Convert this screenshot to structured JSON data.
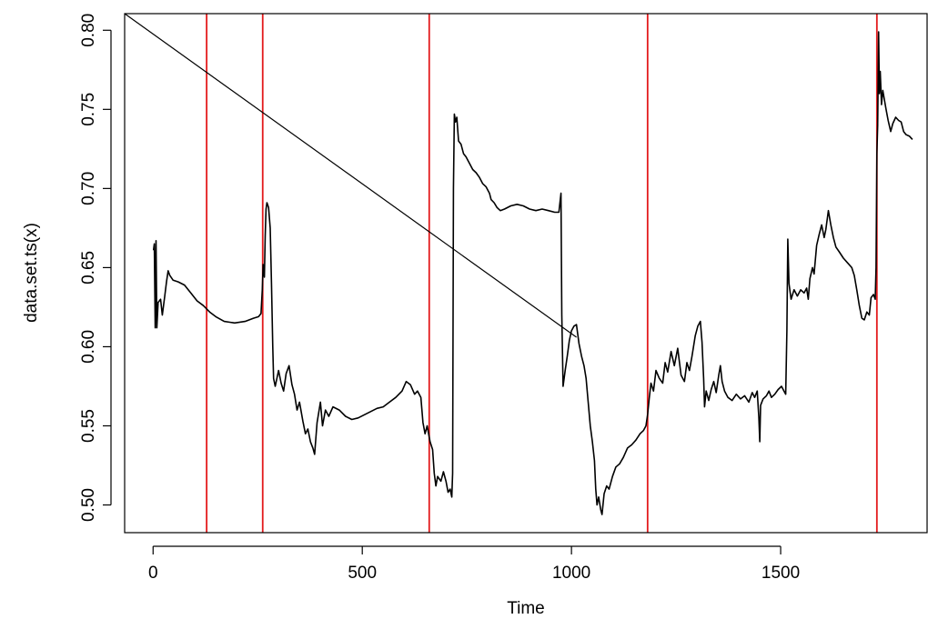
{
  "chart_data": {
    "type": "line",
    "xlabel": "Time",
    "ylabel": "data.set.ts(x)",
    "xlim": [
      -68,
      1850
    ],
    "ylim": [
      0.4825,
      0.8105
    ],
    "x_ticks": [
      0,
      500,
      1000,
      1500
    ],
    "x_tick_labels": [
      "0",
      "500",
      "1000",
      "1500"
    ],
    "y_ticks": [
      0.5,
      0.55,
      0.6,
      0.65,
      0.7,
      0.75,
      0.8
    ],
    "y_tick_labels": [
      "0.50",
      "0.55",
      "0.60",
      "0.65",
      "0.70",
      "0.75",
      "0.80"
    ],
    "grid": false,
    "colors": {
      "series": "#000000",
      "breakpoints": "#e31a1c",
      "axis": "#000000"
    },
    "vertical_lines": [
      128,
      262,
      660,
      1182,
      1730
    ],
    "series": [
      {
        "values": [
          [
            1,
            0.661
          ],
          [
            3,
            0.665
          ],
          [
            5,
            0.612
          ],
          [
            7,
            0.667
          ],
          [
            9,
            0.612
          ],
          [
            12,
            0.628
          ],
          [
            18,
            0.63
          ],
          [
            22,
            0.62
          ],
          [
            28,
            0.632
          ],
          [
            32,
            0.641
          ],
          [
            36,
            0.648
          ],
          [
            40,
            0.645
          ],
          [
            48,
            0.642
          ],
          [
            60,
            0.641
          ],
          [
            75,
            0.639
          ],
          [
            90,
            0.634
          ],
          [
            105,
            0.629
          ],
          [
            120,
            0.626
          ],
          [
            135,
            0.622
          ],
          [
            150,
            0.619
          ],
          [
            170,
            0.616
          ],
          [
            195,
            0.615
          ],
          [
            220,
            0.616
          ],
          [
            240,
            0.618
          ],
          [
            252,
            0.619
          ],
          [
            258,
            0.621
          ],
          [
            261,
            0.636
          ],
          [
            263,
            0.652
          ],
          [
            266,
            0.644
          ],
          [
            268,
            0.67
          ],
          [
            270,
            0.687
          ],
          [
            272,
            0.691
          ],
          [
            276,
            0.688
          ],
          [
            280,
            0.675
          ],
          [
            283,
            0.64
          ],
          [
            286,
            0.6
          ],
          [
            288,
            0.58
          ],
          [
            292,
            0.575
          ],
          [
            300,
            0.585
          ],
          [
            306,
            0.577
          ],
          [
            312,
            0.572
          ],
          [
            318,
            0.583
          ],
          [
            325,
            0.588
          ],
          [
            332,
            0.576
          ],
          [
            338,
            0.57
          ],
          [
            344,
            0.56
          ],
          [
            350,
            0.565
          ],
          [
            358,
            0.553
          ],
          [
            364,
            0.545
          ],
          [
            370,
            0.548
          ],
          [
            376,
            0.54
          ],
          [
            382,
            0.536
          ],
          [
            386,
            0.532
          ],
          [
            392,
            0.552
          ],
          [
            400,
            0.565
          ],
          [
            405,
            0.55
          ],
          [
            412,
            0.56
          ],
          [
            420,
            0.556
          ],
          [
            430,
            0.562
          ],
          [
            445,
            0.56
          ],
          [
            460,
            0.556
          ],
          [
            475,
            0.554
          ],
          [
            490,
            0.555
          ],
          [
            505,
            0.557
          ],
          [
            520,
            0.559
          ],
          [
            535,
            0.561
          ],
          [
            550,
            0.562
          ],
          [
            565,
            0.565
          ],
          [
            580,
            0.568
          ],
          [
            595,
            0.572
          ],
          [
            605,
            0.578
          ],
          [
            615,
            0.576
          ],
          [
            625,
            0.57
          ],
          [
            632,
            0.572
          ],
          [
            640,
            0.568
          ],
          [
            645,
            0.552
          ],
          [
            650,
            0.545
          ],
          [
            655,
            0.55
          ],
          [
            662,
            0.54
          ],
          [
            668,
            0.535
          ],
          [
            672,
            0.52
          ],
          [
            676,
            0.512
          ],
          [
            680,
            0.518
          ],
          [
            688,
            0.515
          ],
          [
            694,
            0.521
          ],
          [
            700,
            0.515
          ],
          [
            705,
            0.508
          ],
          [
            710,
            0.51
          ],
          [
            714,
            0.505
          ],
          [
            716,
            0.52
          ],
          [
            718,
            0.7
          ],
          [
            720,
            0.747
          ],
          [
            723,
            0.742
          ],
          [
            726,
            0.745
          ],
          [
            730,
            0.73
          ],
          [
            736,
            0.728
          ],
          [
            742,
            0.722
          ],
          [
            748,
            0.72
          ],
          [
            756,
            0.716
          ],
          [
            764,
            0.712
          ],
          [
            772,
            0.71
          ],
          [
            780,
            0.707
          ],
          [
            788,
            0.703
          ],
          [
            796,
            0.701
          ],
          [
            804,
            0.697
          ],
          [
            808,
            0.693
          ],
          [
            815,
            0.691
          ],
          [
            822,
            0.688
          ],
          [
            830,
            0.686
          ],
          [
            840,
            0.687
          ],
          [
            855,
            0.689
          ],
          [
            870,
            0.69
          ],
          [
            885,
            0.689
          ],
          [
            900,
            0.687
          ],
          [
            915,
            0.686
          ],
          [
            930,
            0.687
          ],
          [
            945,
            0.686
          ],
          [
            960,
            0.685
          ],
          [
            970,
            0.685
          ],
          [
            975,
            0.697
          ],
          [
            977,
            0.62
          ],
          [
            980,
            0.575
          ],
          [
            985,
            0.585
          ],
          [
            990,
            0.594
          ],
          [
            995,
            0.604
          ],
          [
            1000,
            0.61
          ],
          [
            1006,
            0.613
          ],
          [
            1012,
            0.614
          ],
          [
            1018,
            0.602
          ],
          [
            1024,
            0.594
          ],
          [
            1030,
            0.588
          ],
          [
            1035,
            0.58
          ],
          [
            1040,
            0.565
          ],
          [
            1045,
            0.55
          ],
          [
            1050,
            0.54
          ],
          [
            1055,
            0.528
          ],
          [
            1058,
            0.51
          ],
          [
            1061,
            0.5
          ],
          [
            1065,
            0.505
          ],
          [
            1070,
            0.497
          ],
          [
            1073,
            0.494
          ],
          [
            1078,
            0.507
          ],
          [
            1084,
            0.512
          ],
          [
            1090,
            0.51
          ],
          [
            1098,
            0.518
          ],
          [
            1106,
            0.524
          ],
          [
            1115,
            0.526
          ],
          [
            1124,
            0.53
          ],
          [
            1134,
            0.536
          ],
          [
            1144,
            0.538
          ],
          [
            1154,
            0.541
          ],
          [
            1164,
            0.545
          ],
          [
            1172,
            0.547
          ],
          [
            1178,
            0.55
          ],
          [
            1182,
            0.557
          ],
          [
            1186,
            0.568
          ],
          [
            1190,
            0.577
          ],
          [
            1196,
            0.572
          ],
          [
            1202,
            0.585
          ],
          [
            1210,
            0.58
          ],
          [
            1218,
            0.577
          ],
          [
            1224,
            0.59
          ],
          [
            1230,
            0.584
          ],
          [
            1238,
            0.597
          ],
          [
            1246,
            0.588
          ],
          [
            1254,
            0.599
          ],
          [
            1262,
            0.582
          ],
          [
            1270,
            0.578
          ],
          [
            1276,
            0.59
          ],
          [
            1282,
            0.585
          ],
          [
            1288,
            0.594
          ],
          [
            1296,
            0.607
          ],
          [
            1302,
            0.613
          ],
          [
            1308,
            0.616
          ],
          [
            1312,
            0.603
          ],
          [
            1316,
            0.58
          ],
          [
            1318,
            0.562
          ],
          [
            1322,
            0.572
          ],
          [
            1328,
            0.566
          ],
          [
            1334,
            0.573
          ],
          [
            1340,
            0.578
          ],
          [
            1346,
            0.571
          ],
          [
            1352,
            0.582
          ],
          [
            1356,
            0.588
          ],
          [
            1360,
            0.578
          ],
          [
            1366,
            0.572
          ],
          [
            1374,
            0.568
          ],
          [
            1384,
            0.566
          ],
          [
            1394,
            0.57
          ],
          [
            1404,
            0.567
          ],
          [
            1414,
            0.569
          ],
          [
            1424,
            0.565
          ],
          [
            1432,
            0.571
          ],
          [
            1438,
            0.568
          ],
          [
            1444,
            0.572
          ],
          [
            1448,
            0.555
          ],
          [
            1450,
            0.54
          ],
          [
            1452,
            0.563
          ],
          [
            1458,
            0.567
          ],
          [
            1466,
            0.569
          ],
          [
            1472,
            0.572
          ],
          [
            1478,
            0.568
          ],
          [
            1486,
            0.57
          ],
          [
            1494,
            0.573
          ],
          [
            1502,
            0.575
          ],
          [
            1508,
            0.572
          ],
          [
            1512,
            0.57
          ],
          [
            1515,
            0.61
          ],
          [
            1517,
            0.668
          ],
          [
            1520,
            0.64
          ],
          [
            1525,
            0.63
          ],
          [
            1532,
            0.636
          ],
          [
            1540,
            0.632
          ],
          [
            1548,
            0.636
          ],
          [
            1556,
            0.634
          ],
          [
            1562,
            0.637
          ],
          [
            1566,
            0.63
          ],
          [
            1570,
            0.643
          ],
          [
            1576,
            0.65
          ],
          [
            1580,
            0.646
          ],
          [
            1586,
            0.664
          ],
          [
            1592,
            0.671
          ],
          [
            1598,
            0.677
          ],
          [
            1604,
            0.669
          ],
          [
            1608,
            0.674
          ],
          [
            1614,
            0.686
          ],
          [
            1620,
            0.677
          ],
          [
            1626,
            0.669
          ],
          [
            1632,
            0.663
          ],
          [
            1640,
            0.66
          ],
          [
            1650,
            0.656
          ],
          [
            1660,
            0.653
          ],
          [
            1670,
            0.65
          ],
          [
            1676,
            0.645
          ],
          [
            1682,
            0.636
          ],
          [
            1688,
            0.626
          ],
          [
            1694,
            0.618
          ],
          [
            1700,
            0.617
          ],
          [
            1706,
            0.622
          ],
          [
            1712,
            0.62
          ],
          [
            1716,
            0.631
          ],
          [
            1722,
            0.633
          ],
          [
            1726,
            0.63
          ],
          [
            1728,
            0.65
          ],
          [
            1730,
            0.722
          ],
          [
            1732,
            0.74
          ],
          [
            1734,
            0.799
          ],
          [
            1736,
            0.76
          ],
          [
            1738,
            0.774
          ],
          [
            1741,
            0.753
          ],
          [
            1744,
            0.762
          ],
          [
            1748,
            0.756
          ],
          [
            1752,
            0.75
          ],
          [
            1757,
            0.743
          ],
          [
            1763,
            0.736
          ],
          [
            1768,
            0.741
          ],
          [
            1775,
            0.745
          ],
          [
            1782,
            0.743
          ],
          [
            1788,
            0.742
          ],
          [
            1794,
            0.736
          ],
          [
            1800,
            0.734
          ],
          [
            1808,
            0.733
          ],
          [
            1815,
            0.731
          ]
        ]
      },
      {
        "values": [
          [
            -68,
            0.8105
          ],
          [
            1012,
            0.606
          ]
        ]
      }
    ]
  }
}
